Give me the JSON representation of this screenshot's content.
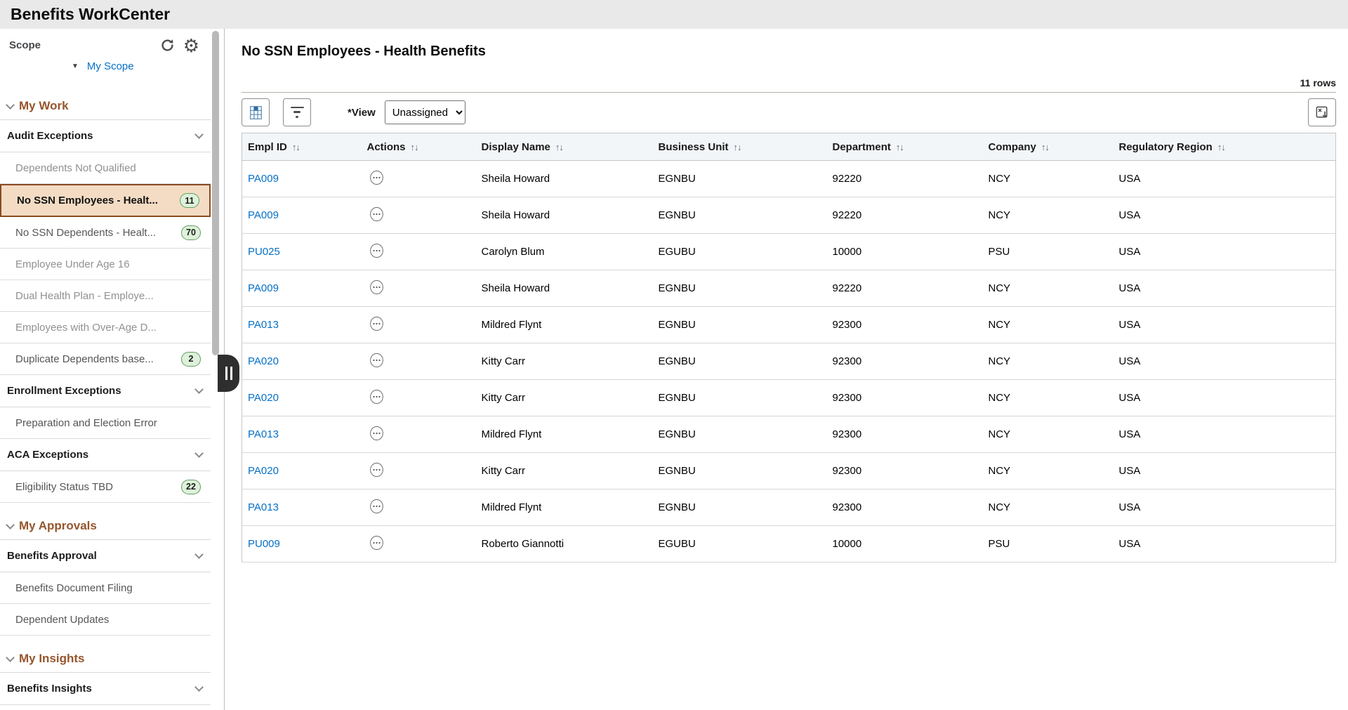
{
  "app": {
    "title": "Benefits WorkCenter"
  },
  "colors": {
    "topbar_bg": "#e9e9e9",
    "group_header_brown": "#96552c",
    "link_blue": "#0570c7",
    "selected_item_bg": "#f4dcc4",
    "selected_item_border": "#8a4a22",
    "badge_bg": "#dff0dc",
    "badge_border": "#5da05f",
    "table_header_bg": "#f3f6f8"
  },
  "icons": {
    "refresh": "refresh-icon",
    "gear": "gear-icon",
    "grid": "grid-personalize-icon",
    "filter": "filter-icon",
    "export": "download-grid-icon",
    "actions": "related-actions-ellipsis-icon",
    "collapse": "collapse-panel-icon"
  },
  "sidebar": {
    "scope": {
      "title": "Scope",
      "selector_label": "My Scope"
    },
    "groups": [
      {
        "label": "My Work",
        "sections": [
          {
            "label": "Audit Exceptions",
            "items": [
              {
                "label": "Dependents Not Qualified",
                "dimmed": true
              },
              {
                "label": "No SSN Employees - Healt...",
                "badge": "11",
                "selected": true
              },
              {
                "label": "No SSN Dependents - Healt...",
                "badge": "70"
              },
              {
                "label": "Employee Under Age 16",
                "dimmed": true
              },
              {
                "label": "Dual Health Plan - Employe...",
                "dimmed": true
              },
              {
                "label": "Employees with Over-Age D...",
                "dimmed": true
              },
              {
                "label": "Duplicate Dependents base...",
                "badge": "2"
              }
            ]
          },
          {
            "label": "Enrollment Exceptions",
            "items": [
              {
                "label": "Preparation and Election Error"
              }
            ]
          },
          {
            "label": "ACA Exceptions",
            "items": [
              {
                "label": "Eligibility Status TBD",
                "badge": "22"
              }
            ]
          }
        ]
      },
      {
        "label": "My Approvals",
        "sections": [
          {
            "label": "Benefits Approval",
            "items": [
              {
                "label": "Benefits Document Filing"
              },
              {
                "label": "Dependent Updates"
              }
            ]
          }
        ]
      },
      {
        "label": "My Insights",
        "sections": [
          {
            "label": "Benefits Insights",
            "items": []
          }
        ]
      }
    ]
  },
  "main": {
    "title": "No SSN Employees - Health Benefits",
    "rows_count": "11 rows",
    "view": {
      "label": "*View",
      "value": "Unassigned"
    },
    "table": {
      "columns": [
        "Empl ID",
        "Actions",
        "Display Name",
        "Business Unit",
        "Department",
        "Company",
        "Regulatory Region"
      ],
      "rows": [
        {
          "empl_id": "PA009",
          "display_name": "Sheila Howard",
          "business_unit": "EGNBU",
          "department": "92220",
          "company": "NCY",
          "regulatory_region": "USA"
        },
        {
          "empl_id": "PA009",
          "display_name": "Sheila Howard",
          "business_unit": "EGNBU",
          "department": "92220",
          "company": "NCY",
          "regulatory_region": "USA"
        },
        {
          "empl_id": "PU025",
          "display_name": "Carolyn Blum",
          "business_unit": "EGUBU",
          "department": "10000",
          "company": "PSU",
          "regulatory_region": "USA"
        },
        {
          "empl_id": "PA009",
          "display_name": "Sheila Howard",
          "business_unit": "EGNBU",
          "department": "92220",
          "company": "NCY",
          "regulatory_region": "USA"
        },
        {
          "empl_id": "PA013",
          "display_name": "Mildred Flynt",
          "business_unit": "EGNBU",
          "department": "92300",
          "company": "NCY",
          "regulatory_region": "USA"
        },
        {
          "empl_id": "PA020",
          "display_name": "Kitty Carr",
          "business_unit": "EGNBU",
          "department": "92300",
          "company": "NCY",
          "regulatory_region": "USA"
        },
        {
          "empl_id": "PA020",
          "display_name": "Kitty Carr",
          "business_unit": "EGNBU",
          "department": "92300",
          "company": "NCY",
          "regulatory_region": "USA"
        },
        {
          "empl_id": "PA013",
          "display_name": "Mildred Flynt",
          "business_unit": "EGNBU",
          "department": "92300",
          "company": "NCY",
          "regulatory_region": "USA"
        },
        {
          "empl_id": "PA020",
          "display_name": "Kitty Carr",
          "business_unit": "EGNBU",
          "department": "92300",
          "company": "NCY",
          "regulatory_region": "USA"
        },
        {
          "empl_id": "PA013",
          "display_name": "Mildred Flynt",
          "business_unit": "EGNBU",
          "department": "92300",
          "company": "NCY",
          "regulatory_region": "USA"
        },
        {
          "empl_id": "PU009",
          "display_name": "Roberto Giannotti",
          "business_unit": "EGUBU",
          "department": "10000",
          "company": "PSU",
          "regulatory_region": "USA"
        }
      ]
    }
  }
}
